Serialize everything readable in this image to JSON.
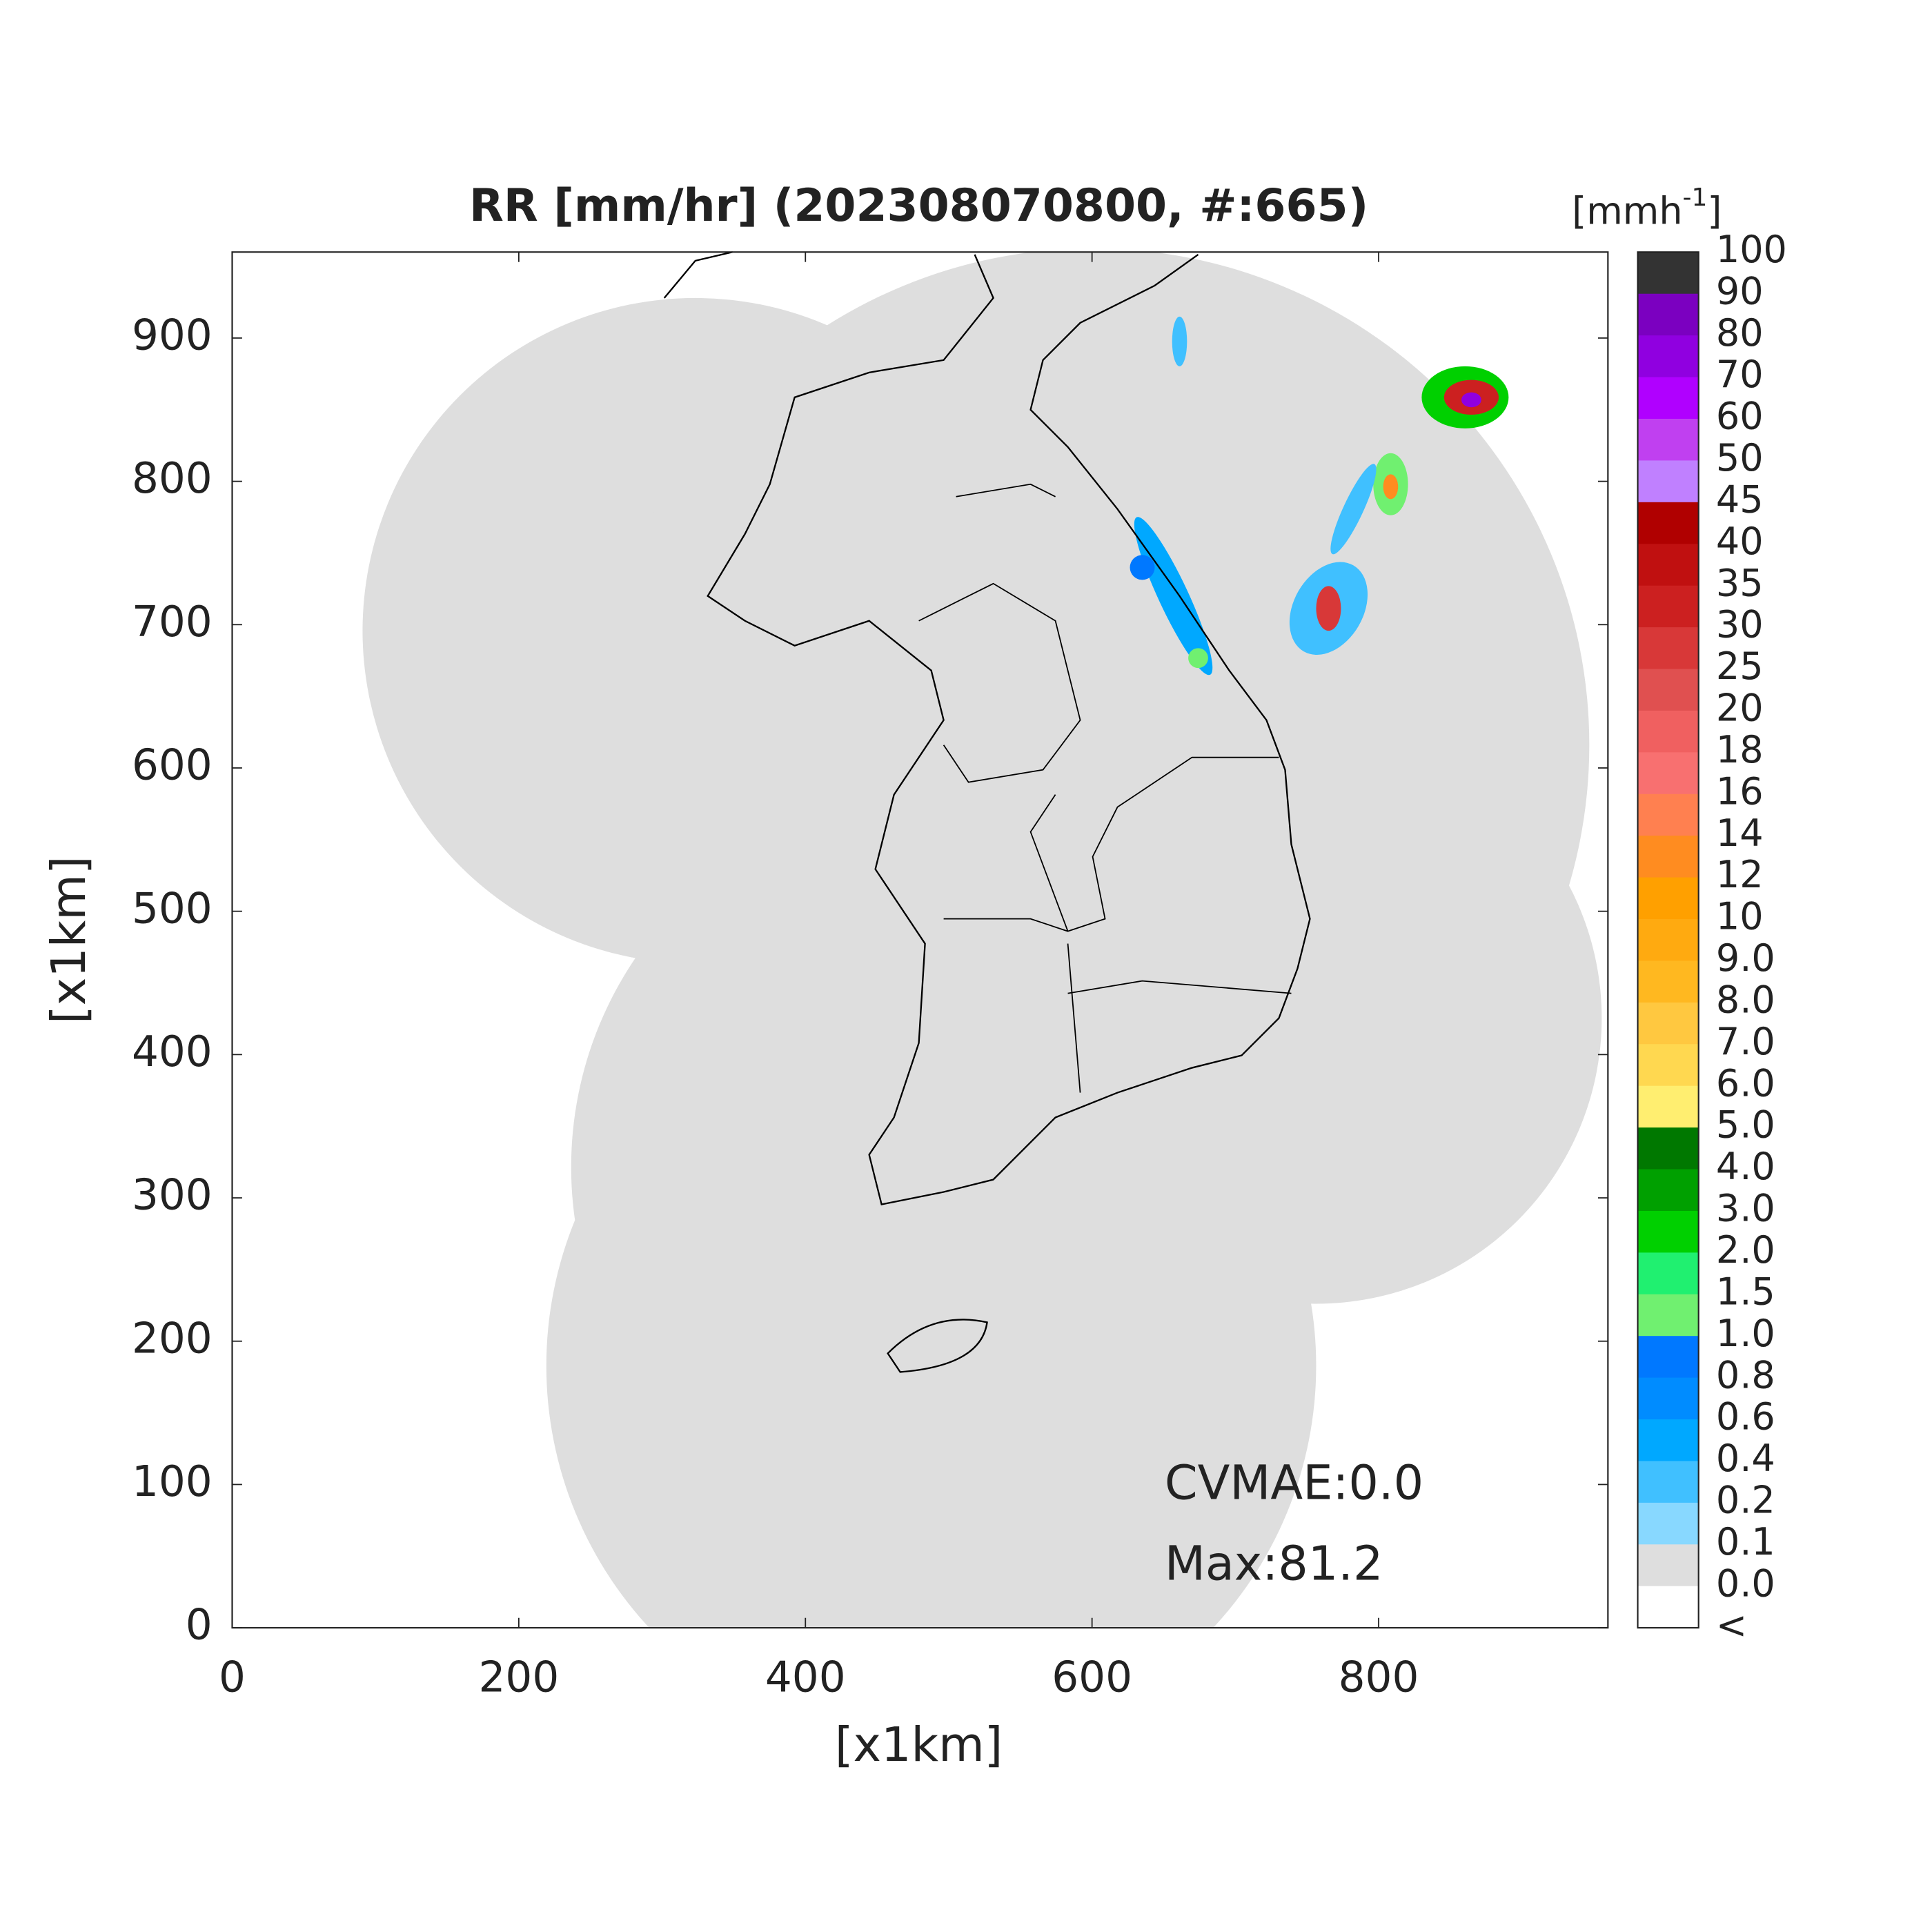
{
  "chart_data": {
    "type": "map",
    "title": "RR [mm/hr] (202308070800, #:665)",
    "xlabel": "[x1km]",
    "ylabel": "[x1km]",
    "xlim": [
      0,
      960
    ],
    "ylim": [
      0,
      960
    ],
    "xticks": [
      0,
      200,
      400,
      600,
      800
    ],
    "yticks": [
      0,
      100,
      200,
      300,
      400,
      500,
      600,
      700,
      800,
      900
    ],
    "annotations": [
      "CVMAE:0.0",
      "Max:81.2"
    ],
    "colorbar": {
      "unit": "[mmh",
      "unit_exponent": "-1",
      "unit_close": "]",
      "labels": [
        "100",
        "90",
        "80",
        "70",
        "60",
        "50",
        "45",
        "40",
        "35",
        "30",
        "25",
        "20",
        "18",
        "16",
        "14",
        "12",
        "10",
        "9.0",
        "8.0",
        "7.0",
        "6.0",
        "5.0",
        "4.0",
        "3.0",
        "2.0",
        "1.5",
        "1.0",
        "0.8",
        "0.6",
        "0.4",
        "0.2",
        "0.1",
        "0.0",
        "<"
      ],
      "colors": [
        "#333333",
        "#7b00c0",
        "#9000e0",
        "#b000ff",
        "#c040f0",
        "#c080ff",
        "#b00000",
        "#c01010",
        "#cc2020",
        "#d83838",
        "#e05050",
        "#f06060",
        "#f87070",
        "#ff8050",
        "#ff8c20",
        "#ffa000",
        "#ffaa10",
        "#ffb820",
        "#ffc840",
        "#ffd850",
        "#ffee70",
        "#007800",
        "#00a000",
        "#00d000",
        "#20f070",
        "#70f070",
        "#0078ff",
        "#008cff",
        "#00a8ff",
        "#40c0ff",
        "#88d8ff",
        "#dedede",
        "#ffffff"
      ]
    }
  }
}
